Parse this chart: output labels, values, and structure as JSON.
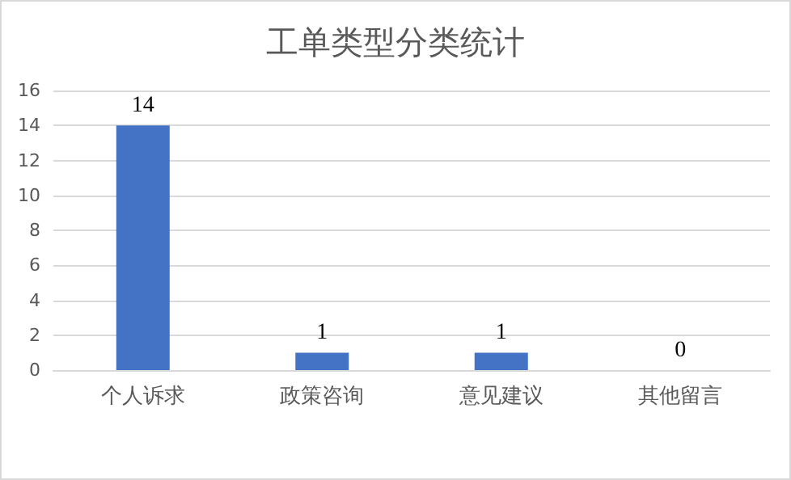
{
  "chart_data": {
    "type": "bar",
    "title": "工单类型分类统计",
    "categories": [
      "个人诉求",
      "政策咨询",
      "意见建议",
      "其他留言"
    ],
    "values": [
      14,
      1,
      1,
      0
    ],
    "color": "#4472c4",
    "ylim": [
      0,
      16
    ],
    "yticks": [
      0,
      2,
      4,
      6,
      8,
      10,
      12,
      14,
      16
    ],
    "grid": "y",
    "data_labels": true
  }
}
